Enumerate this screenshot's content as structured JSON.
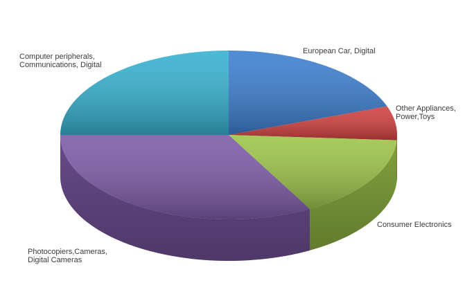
{
  "chart_data": {
    "type": "pie",
    "style": "3d",
    "legend": "none",
    "slices": [
      {
        "label_lines": [
          "European Car, Digital"
        ],
        "value": 19.5,
        "color": "#3d7fd0"
      },
      {
        "label_lines": [
          "Other Appliances,",
          "Power,Toys"
        ],
        "value": 6.5,
        "color": "#d24141"
      },
      {
        "label_lines": [
          "Consumer Electronics"
        ],
        "value": 16.0,
        "color": "#9dc54a"
      },
      {
        "label_lines": [
          "Photocopiers,Cameras,",
          "Digital Cameras"
        ],
        "value": 33.0,
        "color": "#7e5ba8"
      },
      {
        "label_lines": [
          "Computer peripherals,",
          "Communications, Digital"
        ],
        "value": 25.0,
        "color": "#37b1d0"
      }
    ]
  }
}
